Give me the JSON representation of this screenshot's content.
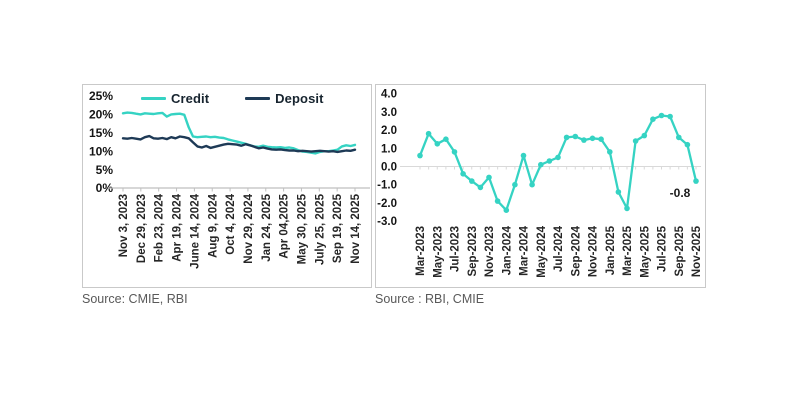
{
  "colors": {
    "credit_teal": "#35d3c3",
    "deposit_navy": "#1e3a56",
    "axis_gray": "#bfbfbf",
    "grid_gray": "#d9d9d9",
    "source_gray": "#595959"
  },
  "left_panel": {
    "source": "Source: CMIE, RBI"
  },
  "right_panel": {
    "source": "Source : RBI, CMIE",
    "annotation": "-0.8"
  },
  "chart_data": [
    {
      "type": "line",
      "title": "",
      "legend_position": "top",
      "grid": "zero-axis-only",
      "ylim": [
        0,
        25
      ],
      "y_tick_labels": [
        "25%",
        "20%",
        "15%",
        "10%",
        "5%",
        "0%"
      ],
      "x_tick_labels": [
        "Nov 3, 2023",
        "Dec 29, 2023",
        "Feb 23, 2024",
        "Apr 19, 2024",
        "June 14, 2024",
        "Aug 9, 2024",
        "Oct 4, 2024",
        "Nov 29, 2024",
        "Jan 24, 2025",
        "Apr 04,2025",
        "May 30, 2025",
        "July 25, 2025",
        "Sep 19, 2025",
        "Nov 14, 2025"
      ],
      "series": [
        {
          "name": "Credit",
          "color": "#35d3c3",
          "values": [
            20.3,
            20.5,
            20.4,
            20.2,
            20.0,
            20.3,
            20.2,
            20.1,
            20.3,
            20.4,
            19.4,
            20.0,
            20.1,
            20.2,
            19.9,
            16.5,
            14.0,
            13.8,
            13.9,
            14.0,
            13.8,
            13.9,
            13.7,
            13.6,
            13.2,
            12.9,
            12.6,
            12.3,
            12.0,
            11.6,
            11.3,
            11.2,
            11.5,
            11.2,
            11.1,
            11.0,
            11.1,
            10.9,
            11.0,
            10.8,
            10.3,
            9.9,
            9.8,
            9.6,
            9.4,
            9.8,
            10.0,
            10.0,
            10.2,
            10.4,
            11.3,
            11.6,
            11.4,
            11.7
          ]
        },
        {
          "name": "Deposit",
          "color": "#1e3a56",
          "values": [
            13.5,
            13.4,
            13.6,
            13.4,
            13.2,
            13.8,
            14.1,
            13.5,
            13.4,
            13.6,
            13.3,
            13.8,
            13.5,
            14.0,
            13.8,
            13.5,
            12.4,
            11.3,
            11.0,
            11.4,
            10.9,
            11.2,
            11.5,
            11.8,
            12.0,
            11.9,
            11.8,
            11.5,
            11.9,
            11.6,
            11.2,
            10.8,
            11.0,
            10.7,
            10.5,
            10.4,
            10.5,
            10.3,
            10.2,
            10.2,
            10.0,
            10.1,
            10.0,
            9.9,
            10.0,
            10.1,
            10.0,
            9.9,
            10.0,
            9.8,
            10.0,
            10.2,
            10.1,
            10.4
          ]
        }
      ]
    },
    {
      "type": "line",
      "title": "",
      "markers": true,
      "color": "#35d3c3",
      "grid": "zero-axis-only",
      "ylim": [
        -3,
        4
      ],
      "y_tick_labels": [
        "4.0",
        "3.0",
        "2.0",
        "1.0",
        "0.0",
        "-1.0",
        "-2.0",
        "-3.0"
      ],
      "x": [
        "Mar-2023",
        "Apr-2023",
        "May-2023",
        "Jun-2023",
        "Jul-2023",
        "Aug-2023",
        "Sep-2023",
        "Oct-2023",
        "Nov-2023",
        "Dec-2023",
        "Jan-2024",
        "Feb-2024",
        "Mar-2024",
        "Apr-2024",
        "May-2024",
        "Jun-2024",
        "Jul-2024",
        "Aug-2024",
        "Sep-2024",
        "Oct-2024",
        "Nov-2024",
        "Dec-2024",
        "Jan-2025",
        "Feb-2025",
        "Mar-2025",
        "Apr-2025",
        "May-2025",
        "Jun-2025",
        "Jul-2025",
        "Aug-2025",
        "Sep-2025",
        "Oct-2025",
        "Nov-2025"
      ],
      "values": [
        0.6,
        1.8,
        1.25,
        1.5,
        0.8,
        -0.4,
        -0.8,
        -1.15,
        -0.6,
        -1.9,
        -2.4,
        -1.0,
        0.6,
        -1.0,
        0.1,
        0.3,
        0.5,
        1.6,
        1.65,
        1.45,
        1.55,
        1.5,
        0.8,
        -1.4,
        -2.3,
        1.4,
        1.7,
        2.6,
        2.8,
        2.75,
        1.6,
        1.2,
        -0.8
      ],
      "x_tick_labels": [
        "Mar-2023",
        "May-2023",
        "Jul-2023",
        "Sep-2023",
        "Nov-2023",
        "Jan-2024",
        "Mar-2024",
        "May-2024",
        "Jul-2024",
        "Sep-2024",
        "Nov-2024",
        "Jan-2025",
        "Mar-2025",
        "May-2025",
        "Jul-2025",
        "Sep-2025",
        "Nov-2025"
      ],
      "annotation": {
        "text": "-0.8",
        "x": "Nov-2025"
      }
    }
  ]
}
